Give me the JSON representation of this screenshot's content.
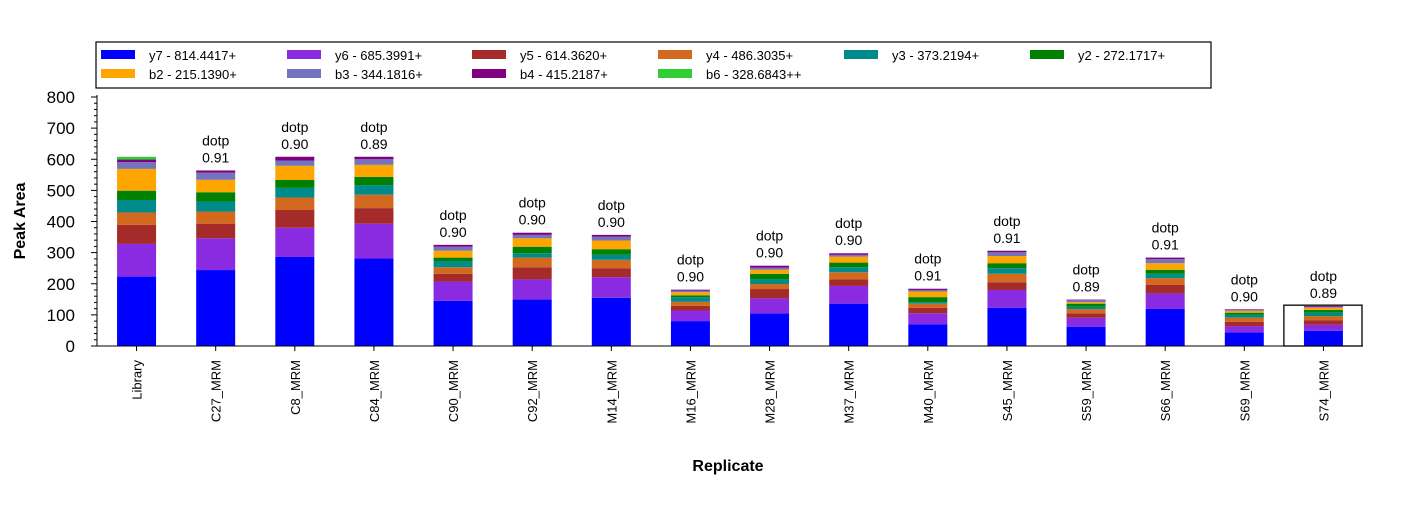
{
  "chart_data": {
    "type": "bar",
    "stacked": true,
    "xlabel": "Replicate",
    "ylabel": "Peak Area",
    "ylim": [
      0,
      800
    ],
    "yticks": [
      0,
      100,
      200,
      300,
      400,
      500,
      600,
      700,
      800
    ],
    "legend_position": "top",
    "categories": [
      "Library",
      "C27_MRM",
      "C8_MRM",
      "C84_MRM",
      "C90_MRM",
      "C92_MRM",
      "M14_MRM",
      "M16_MRM",
      "M28_MRM",
      "M37_MRM",
      "M40_MRM",
      "S45_MRM",
      "S59_MRM",
      "S66_MRM",
      "S69_MRM",
      "S74_MRM"
    ],
    "annotations": [
      "",
      "dotp\n0.91",
      "dotp\n0.90",
      "dotp\n0.89",
      "dotp\n0.90",
      "dotp\n0.90",
      "dotp\n0.90",
      "dotp\n0.90",
      "dotp\n0.90",
      "dotp\n0.90",
      "dotp\n0.91",
      "dotp\n0.91",
      "dotp\n0.89",
      "dotp\n0.91",
      "dotp\n0.90",
      "dotp\n0.89"
    ],
    "selected_category": "S74_MRM",
    "series": [
      {
        "name": "y7 - 814.4417+",
        "color": "#0000FF",
        "values": [
          223,
          244,
          286,
          281,
          145,
          150,
          155,
          80,
          105,
          136,
          70,
          123,
          62,
          119,
          44,
          49
        ]
      },
      {
        "name": "y6 - 685.3991+",
        "color": "#8A2BE2",
        "values": [
          105,
          102,
          94,
          112,
          62,
          64,
          66,
          34,
          48,
          57,
          35,
          57,
          29,
          50,
          20,
          19
        ]
      },
      {
        "name": "y5 - 614.3620+",
        "color": "#A52A2A",
        "values": [
          61,
          47,
          57,
          50,
          25,
          39,
          29,
          15,
          30,
          21,
          18,
          25,
          14,
          27,
          14,
          15
        ]
      },
      {
        "name": "y4 - 486.3035+",
        "color": "#D2691E",
        "values": [
          40,
          39,
          40,
          43,
          21,
          31,
          27,
          13,
          16,
          23,
          13,
          27,
          13,
          22,
          13,
          13
        ]
      },
      {
        "name": "y3 - 373.2194+",
        "color": "#008B8B",
        "values": [
          40,
          32,
          31,
          31,
          20,
          14,
          16,
          15,
          15,
          16,
          5,
          18,
          8,
          14,
          9,
          11
        ]
      },
      {
        "name": "y2 - 272.1717+",
        "color": "#008000",
        "values": [
          30,
          30,
          26,
          26,
          11,
          21,
          18,
          6,
          18,
          15,
          16,
          16,
          10,
          13,
          7,
          9
        ]
      },
      {
        "name": "b2 - 215.1390+",
        "color": "#FFA500",
        "values": [
          70,
          40,
          45,
          39,
          22,
          27,
          28,
          10,
          13,
          19,
          18,
          23,
          5,
          21,
          6,
          7
        ]
      },
      {
        "name": "b3 - 344.1816+",
        "color": "#7474BE",
        "values": [
          22,
          23,
          17,
          18,
          13,
          11,
          12,
          5,
          7,
          6,
          5,
          12,
          6,
          13,
          3,
          2
        ]
      },
      {
        "name": "b4 - 415.2187+",
        "color": "#800080",
        "values": [
          8,
          7,
          12,
          8,
          6,
          7,
          6,
          3,
          6,
          5,
          4,
          5,
          2,
          5,
          2,
          3
        ]
      },
      {
        "name": "b6 - 328.6843++",
        "color": "#32CD32",
        "values": [
          9,
          0,
          0,
          0,
          0,
          0,
          0,
          0,
          0,
          0,
          0,
          0,
          0,
          0,
          0,
          0
        ]
      }
    ]
  }
}
